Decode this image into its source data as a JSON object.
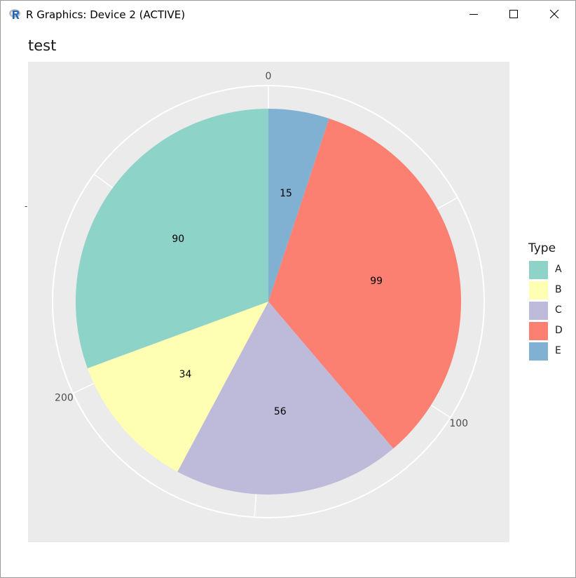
{
  "window": {
    "title": "R Graphics: Device 2 (ACTIVE)",
    "controls": [
      "minimize",
      "maximize",
      "close"
    ]
  },
  "chart_data": {
    "type": "pie",
    "title": "test",
    "legend_title": "Type",
    "legend_position": "right",
    "categories": [
      "A",
      "B",
      "C",
      "D",
      "E"
    ],
    "values": [
      90,
      34,
      56,
      99,
      15
    ],
    "slice_order_clockwise_from_top": [
      "E",
      "D",
      "C",
      "B",
      "A"
    ],
    "colors": {
      "A": "#8dd3c7",
      "B": "#ffffb3",
      "C": "#bebada",
      "D": "#fb8072",
      "E": "#80b1d3"
    },
    "radial_axis_ticks": [
      "0",
      "100",
      "200"
    ],
    "panel_background": "#ebebeb",
    "grid": true
  }
}
